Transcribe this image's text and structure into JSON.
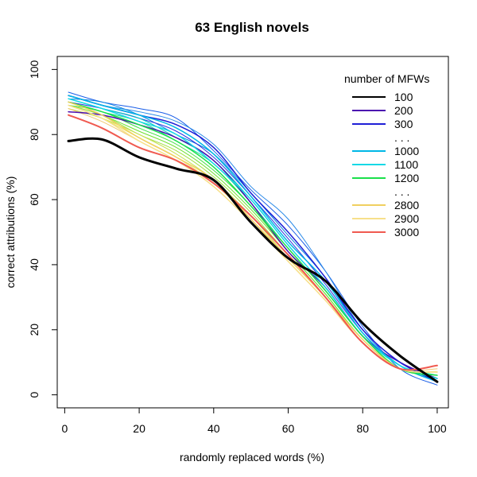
{
  "chart_data": {
    "type": "line",
    "title": "63 English novels",
    "xlabel": "randomly replaced words (%)",
    "ylabel": "correct attributions (%)",
    "xlim": [
      -2,
      103
    ],
    "ylim": [
      -4,
      104
    ],
    "xticks": [
      0,
      20,
      40,
      60,
      80,
      100
    ],
    "yticks": [
      0,
      20,
      40,
      60,
      80,
      100
    ],
    "grid": false,
    "legend": {
      "title": "number of MFWs",
      "position": "top-right",
      "entries": [
        {
          "label": "100",
          "color": "#000000"
        },
        {
          "label": "200",
          "color": "#4b0fb0"
        },
        {
          "label": "300",
          "color": "#1f1fd6"
        },
        {
          "label": ". . .",
          "color": null
        },
        {
          "label": "1000",
          "color": "#00b7e6"
        },
        {
          "label": "1100",
          "color": "#14d9e6"
        },
        {
          "label": "1200",
          "color": "#1ae04a"
        },
        {
          "label": ". . .",
          "color": null
        },
        {
          "label": "2800",
          "color": "#f0d060"
        },
        {
          "label": "2900",
          "color": "#f7e08a"
        },
        {
          "label": "3000",
          "color": "#f05a50"
        }
      ]
    },
    "x": [
      1,
      10,
      20,
      30,
      40,
      50,
      60,
      70,
      80,
      90,
      100
    ],
    "series": [
      {
        "name": "100",
        "color": "#000000",
        "width": 3,
        "values": [
          78,
          78.5,
          73,
          69.5,
          66,
          53,
          42,
          35,
          22,
          12,
          4
        ]
      },
      {
        "name": "200",
        "color": "#4b0fb0",
        "width": 1.5,
        "values": [
          87,
          86,
          83,
          79,
          72,
          59,
          44,
          33,
          18,
          10,
          5
        ]
      },
      {
        "name": "300",
        "color": "#1f1fd6",
        "width": 1.5,
        "values": [
          92,
          89,
          86,
          83,
          76,
          62,
          50,
          36,
          20,
          10,
          4
        ]
      },
      {
        "name": "1000",
        "color": "#00b7e6",
        "width": 1.5,
        "values": [
          92,
          89,
          86,
          82,
          74,
          61,
          47,
          35,
          19,
          9,
          4
        ]
      },
      {
        "name": "1100",
        "color": "#14d9e6",
        "width": 1.5,
        "values": [
          91,
          88,
          84,
          80,
          71,
          60,
          46,
          33,
          18,
          9,
          5
        ]
      },
      {
        "name": "1200",
        "color": "#1ae04a",
        "width": 1.5,
        "values": [
          90,
          87,
          83,
          78,
          70,
          58,
          45,
          32,
          18,
          8,
          6
        ]
      },
      {
        "name": "2800",
        "color": "#f0d060",
        "width": 1.5,
        "values": [
          90,
          86,
          79,
          73,
          66,
          54,
          42,
          30,
          17,
          8,
          7
        ]
      },
      {
        "name": "2900",
        "color": "#f7e08a",
        "width": 1.5,
        "values": [
          89,
          85,
          78,
          72,
          64,
          53,
          41,
          29,
          16,
          8,
          7
        ]
      },
      {
        "name": "3000",
        "color": "#f05a50",
        "width": 2,
        "values": [
          86,
          82,
          76,
          72,
          65,
          55,
          43,
          30,
          16,
          8,
          9
        ]
      },
      {
        "color": "#1a5ee8",
        "width": 1,
        "values": [
          93,
          90,
          88,
          85,
          75,
          63,
          52,
          38,
          21,
          8,
          3
        ]
      },
      {
        "color": "#2a8ae8",
        "width": 1,
        "values": [
          92,
          89,
          87,
          84,
          77,
          64,
          54,
          38,
          20,
          9,
          4
        ]
      },
      {
        "color": "#0080e0",
        "width": 1,
        "values": [
          91,
          90,
          86,
          80,
          74,
          62,
          49,
          36,
          19,
          9,
          4
        ]
      },
      {
        "color": "#3030e0",
        "width": 1,
        "values": [
          90,
          88,
          85,
          81,
          73,
          61,
          48,
          34,
          19,
          9,
          4
        ]
      },
      {
        "color": "#00c8c0",
        "width": 1,
        "values": [
          91,
          88,
          85,
          79,
          72,
          60,
          46,
          33,
          18,
          9,
          5
        ]
      },
      {
        "color": "#10d890",
        "width": 1,
        "values": [
          90,
          87,
          84,
          78,
          71,
          59,
          45,
          32,
          18,
          9,
          6
        ]
      },
      {
        "color": "#40e040",
        "width": 1,
        "values": [
          89,
          87,
          82,
          77,
          69,
          58,
          44,
          31,
          17,
          8,
          6
        ]
      },
      {
        "color": "#70e030",
        "width": 1,
        "values": [
          89,
          86,
          81,
          76,
          68,
          57,
          44,
          31,
          17,
          8,
          7
        ]
      },
      {
        "color": "#a0e040",
        "width": 1,
        "values": [
          89,
          86,
          80,
          75,
          67,
          56,
          43,
          30,
          17,
          8,
          7
        ]
      },
      {
        "color": "#c8e050",
        "width": 1,
        "values": [
          88,
          85,
          80,
          74,
          66,
          55,
          42,
          30,
          16,
          8,
          7
        ]
      },
      {
        "color": "#e8e060",
        "width": 1,
        "values": [
          89,
          85,
          79,
          73,
          65,
          54,
          41,
          29,
          16,
          8,
          7
        ]
      },
      {
        "color": "#f0c870",
        "width": 1,
        "values": [
          88,
          84,
          78,
          72,
          64,
          53,
          41,
          29,
          16,
          8,
          8
        ]
      }
    ]
  }
}
